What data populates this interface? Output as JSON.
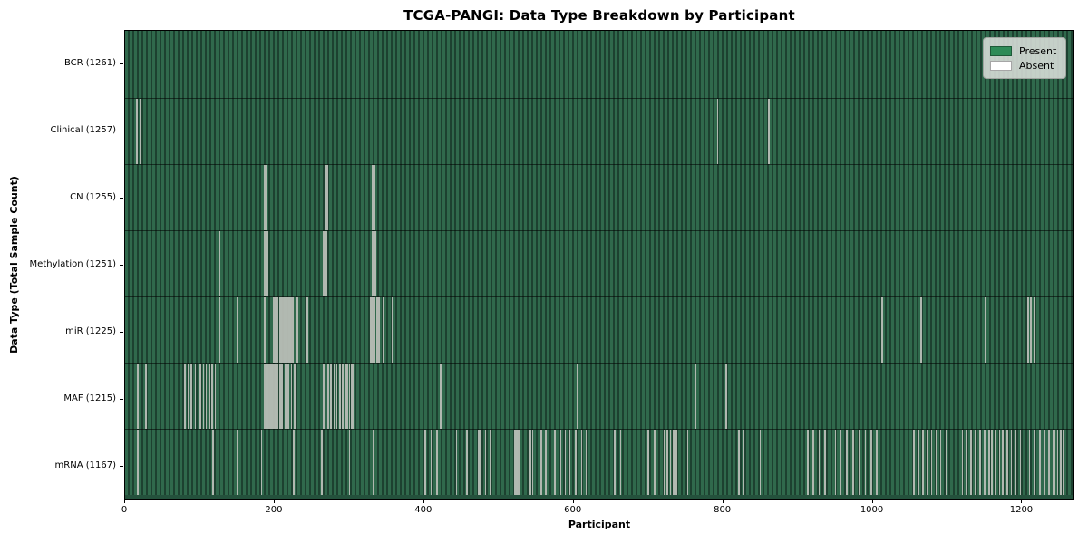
{
  "title": "TCGA-PANGI: Data Type Breakdown by Participant",
  "axes": {
    "x_label": "Participant",
    "y_label": "Data Type (Total Sample Count)"
  },
  "colors": {
    "present_fill": "#2e8b57",
    "present_stripe_light": "#30694c",
    "present_stripe_dark": "#1d4130",
    "absent_line": "#b8beb6",
    "legend_background": "#dadeda"
  },
  "chart_data": {
    "type": "heatmap",
    "title": "TCGA-PANGI: Data Type Breakdown by Participant",
    "xlabel": "Participant",
    "ylabel": "Data Type (Total Sample Count)",
    "x_ticks": [
      0,
      200,
      400,
      600,
      800,
      1000,
      1200
    ],
    "xlim": [
      0,
      1271
    ],
    "n_participants": 1261,
    "grid": false,
    "legend_position": "upper right",
    "legend_items": [
      {
        "label": "Present",
        "color": "#2e8b57"
      },
      {
        "label": "Absent",
        "color": "#ffffff"
      }
    ],
    "rows": [
      {
        "label": "BCR (1261)",
        "data_type": "BCR",
        "present_count": 1261,
        "absent_count": 0,
        "absent_participants_estimated": []
      },
      {
        "label": "Clinical (1257)",
        "data_type": "Clinical",
        "present_count": 1257,
        "absent_count": 4,
        "absent_participants_estimated": [
          15,
          19,
          793,
          862
        ]
      },
      {
        "label": "CN (1255)",
        "data_type": "CN",
        "present_count": 1255,
        "absent_count": 6,
        "absent_participants_estimated": [
          186,
          188,
          268,
          270,
          331,
          333
        ]
      },
      {
        "label": "Methylation (1251)",
        "data_type": "Methylation",
        "present_count": 1251,
        "absent_count": 10,
        "absent_participants_estimated": [
          126,
          186,
          188,
          190,
          265,
          267,
          269,
          331,
          333,
          335
        ]
      },
      {
        "label": "miR (1225)",
        "data_type": "miR",
        "present_count": 1225,
        "absent_count": 36,
        "absent_participants_estimated": [
          126,
          149,
          186,
          198,
          200,
          202,
          204,
          206,
          208,
          210,
          212,
          214,
          216,
          218,
          220,
          222,
          224,
          230,
          243,
          267,
          328,
          330,
          332,
          334,
          336,
          338,
          340,
          345,
          357,
          1014,
          1066,
          1152,
          1205,
          1209,
          1213,
          1217
        ]
      },
      {
        "label": "MAF (1215)",
        "data_type": "MAF",
        "present_count": 1215,
        "absent_count": 46,
        "absent_participants_estimated": [
          16,
          27,
          79,
          84,
          88,
          93,
          100,
          104,
          108,
          112,
          116,
          120,
          186,
          188,
          190,
          192,
          194,
          196,
          198,
          200,
          202,
          204,
          206,
          208,
          210,
          214,
          218,
          222,
          226,
          265,
          267,
          271,
          275,
          279,
          283,
          287,
          291,
          295,
          297,
          300,
          302,
          304,
          422,
          605,
          764,
          805
        ]
      },
      {
        "label": "mRNA (1167)",
        "data_type": "mRNA",
        "present_count": 1167,
        "absent_count": 94,
        "absent_participants_estimated": [
          16,
          117,
          150,
          182,
          225,
          263,
          300,
          332,
          401,
          409,
          417,
          443,
          449,
          457,
          473,
          475,
          482,
          489,
          521,
          523,
          525,
          527,
          542,
          545,
          557,
          563,
          575,
          583,
          589,
          595,
          603,
          611,
          617,
          655,
          663,
          700,
          709,
          722,
          726,
          730,
          734,
          738,
          753,
          822,
          828,
          850,
          905,
          914,
          921,
          929,
          937,
          945,
          951,
          958,
          966,
          975,
          983,
          991,
          999,
          1006,
          1056,
          1062,
          1068,
          1074,
          1080,
          1086,
          1092,
          1100,
          1121,
          1127,
          1133,
          1139,
          1145,
          1151,
          1157,
          1161,
          1165,
          1171,
          1175,
          1181,
          1187,
          1193,
          1199,
          1205,
          1211,
          1217,
          1225,
          1231,
          1237,
          1243,
          1245,
          1249,
          1253,
          1257
        ]
      }
    ]
  }
}
